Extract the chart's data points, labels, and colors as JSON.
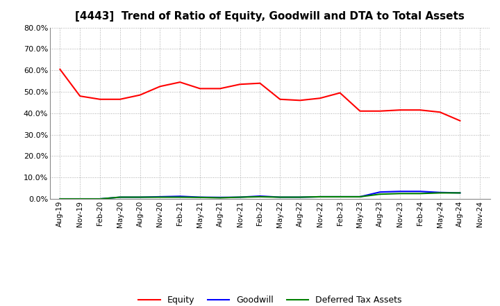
{
  "title": "[4443]  Trend of Ratio of Equity, Goodwill and DTA to Total Assets",
  "x_labels": [
    "Aug-19",
    "Nov-19",
    "Feb-20",
    "May-20",
    "Aug-20",
    "Nov-20",
    "Feb-21",
    "May-21",
    "Aug-21",
    "Nov-21",
    "Feb-22",
    "May-22",
    "Aug-22",
    "Nov-22",
    "Feb-23",
    "May-23",
    "Aug-23",
    "Nov-23",
    "Feb-24",
    "May-24",
    "Aug-24",
    "Nov-24"
  ],
  "equity": [
    60.5,
    48.0,
    46.5,
    46.5,
    48.5,
    52.5,
    54.5,
    51.5,
    51.5,
    53.5,
    54.0,
    46.5,
    46.0,
    47.0,
    49.5,
    41.0,
    41.0,
    41.5,
    41.5,
    40.5,
    36.5,
    null
  ],
  "goodwill": [
    0.0,
    0.0,
    0.0,
    0.8,
    0.8,
    1.0,
    1.2,
    0.8,
    0.7,
    0.8,
    1.3,
    0.8,
    0.8,
    1.0,
    1.0,
    1.0,
    3.2,
    3.5,
    3.5,
    3.0,
    2.8,
    null
  ],
  "dta": [
    0.0,
    0.0,
    0.0,
    0.8,
    0.8,
    0.8,
    0.8,
    0.7,
    0.5,
    0.8,
    1.0,
    0.8,
    0.8,
    1.0,
    1.0,
    1.0,
    2.2,
    2.5,
    2.5,
    2.8,
    2.8,
    null
  ],
  "equity_color": "#FF0000",
  "goodwill_color": "#0000FF",
  "dta_color": "#008000",
  "ylim": [
    0,
    80
  ],
  "yticks": [
    0,
    10,
    20,
    30,
    40,
    50,
    60,
    70,
    80
  ],
  "background_color": "#FFFFFF",
  "grid_color": "#AAAAAA",
  "title_fontsize": 11,
  "legend_labels": [
    "Equity",
    "Goodwill",
    "Deferred Tax Assets"
  ]
}
